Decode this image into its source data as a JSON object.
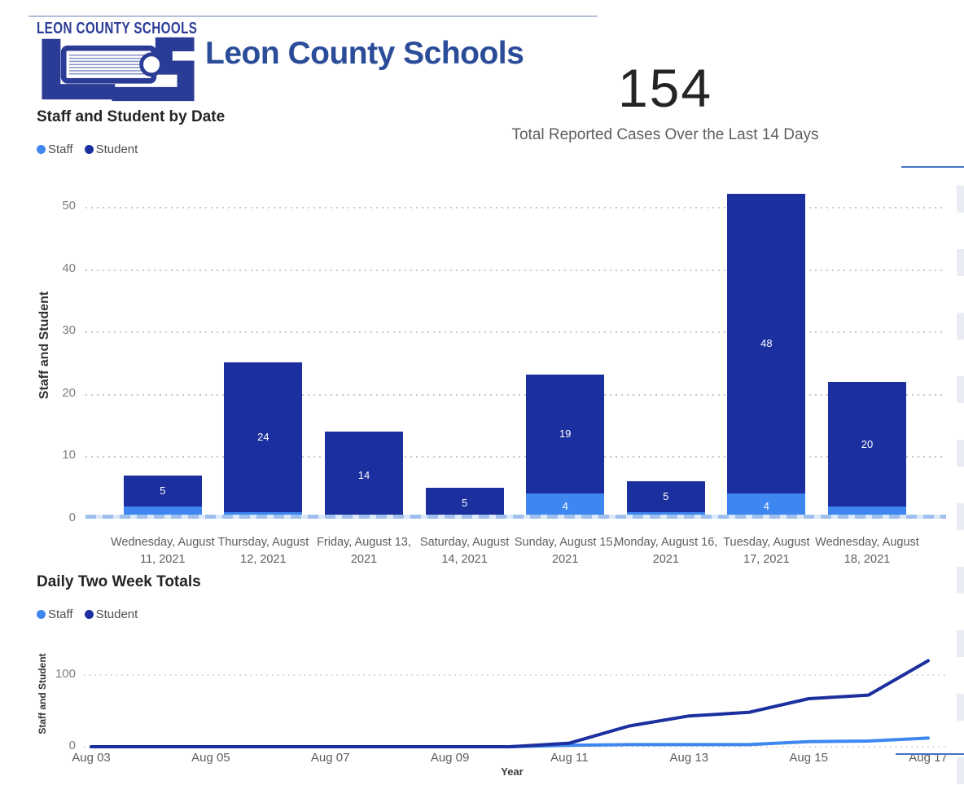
{
  "header": {
    "logo_text_small": "LEON COUNTY SCHOOLS",
    "logo_monogram": "LCS",
    "brand_title": "Leon County Schools",
    "brand_color": "#2A4C99",
    "logo_navy": "#2B3C96"
  },
  "card": {
    "value": "154",
    "label": "Total Reported Cases Over the Last 14 Days"
  },
  "colors": {
    "staff": "#3E87F0",
    "student": "#1B2F9E",
    "baseline_dash": "#9FC0EC",
    "gridline": "#C8C8C8",
    "axis_tick_text": "#7E7E7E",
    "category_text": "#605E5C",
    "title_text": "#252423",
    "accent_line": "#4472C4"
  },
  "chart_data": [
    {
      "type": "bar",
      "stacked": true,
      "title": "Staff and Student by Date",
      "categories": [
        "Wednesday, August 11, 2021",
        "Thursday, August 12, 2021",
        "Friday, August 13, 2021",
        "Saturday, August 14, 2021",
        "Sunday, August 15, 2021",
        "Monday, August 16, 2021",
        "Tuesday, August 17, 2021",
        "Wednesday, August 18, 2021"
      ],
      "series": [
        {
          "name": "Staff",
          "color": "#3E87F0",
          "values": [
            2,
            1,
            0,
            0,
            4,
            1,
            4,
            2
          ]
        },
        {
          "name": "Student",
          "color": "#1B2F9E",
          "values": [
            5,
            24,
            14,
            5,
            19,
            5,
            48,
            20
          ]
        }
      ],
      "visible_data_labels": {
        "Student": [
          5,
          24,
          14,
          5,
          19,
          5,
          48,
          20
        ],
        "Staff_labeled_bars": {
          "Sunday, August 15, 2021": 4,
          "Tuesday, August 17, 2021": 4
        }
      },
      "totals": [
        7,
        25,
        14,
        5,
        23,
        6,
        52,
        22
      ],
      "xlabel": "",
      "ylabel": "Staff and Student",
      "yticks": [
        0,
        10,
        20,
        30,
        40,
        50
      ],
      "ylim": [
        0,
        55
      ],
      "gridlines": "dotted",
      "legend_position": "top-left"
    },
    {
      "type": "line",
      "title": "Daily Two Week Totals",
      "x": [
        "Aug 03",
        "Aug 04",
        "Aug 05",
        "Aug 06",
        "Aug 07",
        "Aug 08",
        "Aug 09",
        "Aug 10",
        "Aug 11",
        "Aug 12",
        "Aug 13",
        "Aug 14",
        "Aug 15",
        "Aug 16",
        "Aug 17"
      ],
      "xticks_shown": [
        "Aug 03",
        "Aug 05",
        "Aug 07",
        "Aug 09",
        "Aug 11",
        "Aug 13",
        "Aug 15",
        "Aug 17"
      ],
      "series": [
        {
          "name": "Staff",
          "color": "#3E87F0",
          "values": [
            0,
            0,
            0,
            0,
            0,
            0,
            0,
            0,
            2,
            3,
            3,
            3,
            7,
            8,
            12
          ]
        },
        {
          "name": "Student",
          "color": "#1B2F9E",
          "values": [
            0,
            0,
            0,
            0,
            0,
            0,
            0,
            0,
            5,
            29,
            43,
            48,
            67,
            72,
            120
          ]
        }
      ],
      "xlabel": "Year",
      "ylabel": "Staff and Student",
      "yticks": [
        0,
        100
      ],
      "ylim": [
        0,
        125
      ],
      "gridlines": "dotted",
      "legend_position": "top-left"
    }
  ]
}
